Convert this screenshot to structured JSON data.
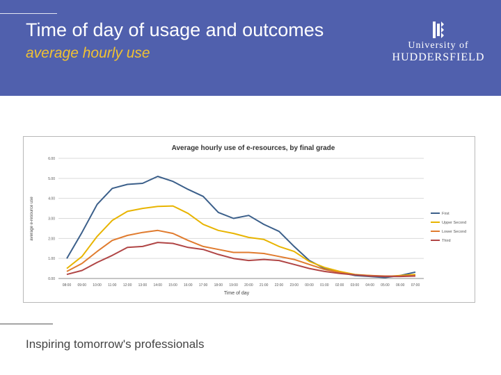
{
  "slide": {
    "title": "Time of day of usage and outcomes",
    "subtitle": "average hourly use",
    "tagline": "Inspiring tomorrow's professionals"
  },
  "logo": {
    "line1": "University of",
    "line2": "HUDDERSFIELD",
    "icon": "university-crest-icon"
  },
  "colors": {
    "header_bg": "#5060ad",
    "subtitle": "#f1c232",
    "first": "#3b5f8a",
    "upper_second": "#e8b400",
    "lower_second": "#e07b2e",
    "third": "#b04545"
  },
  "chart_data": {
    "type": "line",
    "title": "Average hourly use of e-resources, by final grade",
    "xlabel": "Time of day",
    "ylabel": "average e-resource use",
    "ylim": [
      0,
      6
    ],
    "yticks": [
      "0.00",
      "1.00",
      "2.00",
      "3.00",
      "4.00",
      "5.00",
      "6.00"
    ],
    "grid": true,
    "legend_position": "right",
    "categories": [
      "08:00",
      "09:00",
      "10:00",
      "11:00",
      "12:00",
      "13:00",
      "14:00",
      "15:00",
      "16:00",
      "17:00",
      "18:00",
      "19:00",
      "20:00",
      "21:00",
      "22:00",
      "23:00",
      "00:00",
      "01:00",
      "02:00",
      "03:00",
      "04:00",
      "05:00",
      "06:00",
      "07:00"
    ],
    "series": [
      {
        "name": "First",
        "color": "#3b5f8a",
        "values": [
          1.0,
          2.3,
          3.7,
          4.5,
          4.7,
          4.75,
          5.1,
          4.85,
          4.45,
          4.1,
          3.3,
          3.0,
          3.15,
          2.7,
          2.35,
          1.6,
          0.9,
          0.5,
          0.3,
          0.15,
          0.1,
          0.05,
          0.15,
          0.32
        ]
      },
      {
        "name": "Upper Second",
        "color": "#e8b400",
        "values": [
          0.5,
          1.1,
          2.1,
          2.9,
          3.35,
          3.5,
          3.6,
          3.62,
          3.25,
          2.7,
          2.4,
          2.25,
          2.05,
          1.95,
          1.6,
          1.35,
          0.85,
          0.55,
          0.35,
          0.2,
          0.15,
          0.1,
          0.15,
          0.2
        ]
      },
      {
        "name": "Lower Second",
        "color": "#e07b2e",
        "values": [
          0.35,
          0.75,
          1.35,
          1.9,
          2.15,
          2.3,
          2.4,
          2.25,
          1.9,
          1.6,
          1.45,
          1.3,
          1.3,
          1.25,
          1.1,
          0.95,
          0.7,
          0.45,
          0.3,
          0.18,
          0.15,
          0.12,
          0.12,
          0.15
        ]
      },
      {
        "name": "Third",
        "color": "#b04545",
        "values": [
          0.2,
          0.4,
          0.8,
          1.15,
          1.55,
          1.6,
          1.8,
          1.75,
          1.55,
          1.45,
          1.2,
          1.0,
          0.9,
          0.95,
          0.9,
          0.7,
          0.5,
          0.35,
          0.25,
          0.18,
          0.12,
          0.1,
          0.1,
          0.12
        ]
      }
    ]
  }
}
